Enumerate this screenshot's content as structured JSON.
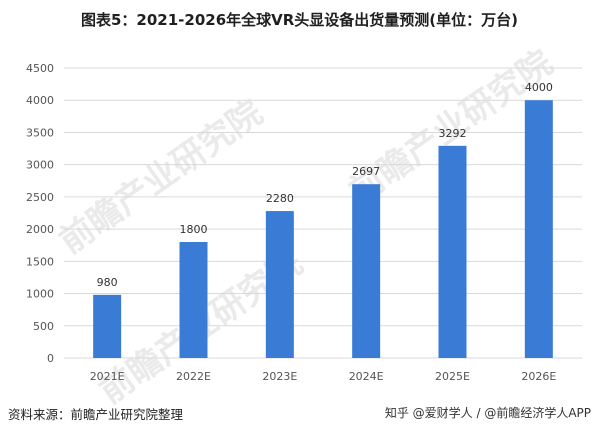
{
  "title": "图表5：2021-2026年全球VR头显设备出货量预测(单位：万台)",
  "footer": {
    "source": "资料来源：前瞻产业研究院整理",
    "credit": "知乎 @爱财学人 / @前瞻经济学人APP"
  },
  "watermark": "前瞻产业研究院",
  "colors": {
    "bar": "#3a7bd5",
    "grid": "#d9d9d9",
    "axis_text": "#555555"
  },
  "chart_data": {
    "type": "bar",
    "title": "图表5：2021-2026年全球VR头显设备出货量预测(单位：万台)",
    "categories": [
      "2021E",
      "2022E",
      "2023E",
      "2024E",
      "2025E",
      "2026E"
    ],
    "values": [
      980,
      1800,
      2280,
      2697,
      3292,
      4000
    ],
    "data_labels": [
      "980",
      "1800",
      "2280",
      "2697",
      "3292",
      "4000"
    ],
    "yticks": [
      "0",
      "500",
      "1000",
      "1500",
      "2000",
      "2500",
      "3000",
      "3500",
      "4000",
      "4500"
    ],
    "ylim": [
      0,
      4500
    ],
    "xlabel": "",
    "ylabel": "",
    "grid": true,
    "legend": "none"
  }
}
